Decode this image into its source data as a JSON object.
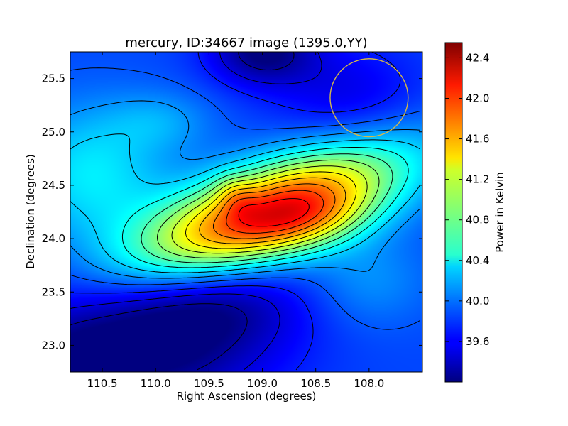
{
  "chart_data": {
    "type": "heatmap",
    "title": "mercury, ID:34667 image (1395.0,YY)",
    "xlabel": "Right Ascension (degrees)",
    "ylabel": "Declination (degrees)",
    "xlim": [
      110.8,
      107.5
    ],
    "ylim": [
      22.75,
      25.75
    ],
    "x_ticks": [
      "110.5",
      "110.0",
      "109.5",
      "109.0",
      "108.5",
      "108.0"
    ],
    "y_ticks": [
      "23.0",
      "23.5",
      "24.0",
      "24.5",
      "25.0",
      "25.5"
    ],
    "colormap": "jet",
    "contours": "black",
    "colorbar": {
      "label": "Power in Kelvin",
      "range": [
        39.2,
        42.55
      ],
      "ticks": [
        "39.6",
        "40.0",
        "40.4",
        "40.8",
        "41.2",
        "41.6",
        "42.0",
        "42.4"
      ]
    },
    "features": {
      "peak_ra": 108.7,
      "peak_dec": 24.2,
      "peak_value": 42.5,
      "beam_circle_ra": 108.0,
      "beam_circle_dec": 25.32,
      "beam_circle_color": "#d4b84a"
    }
  }
}
